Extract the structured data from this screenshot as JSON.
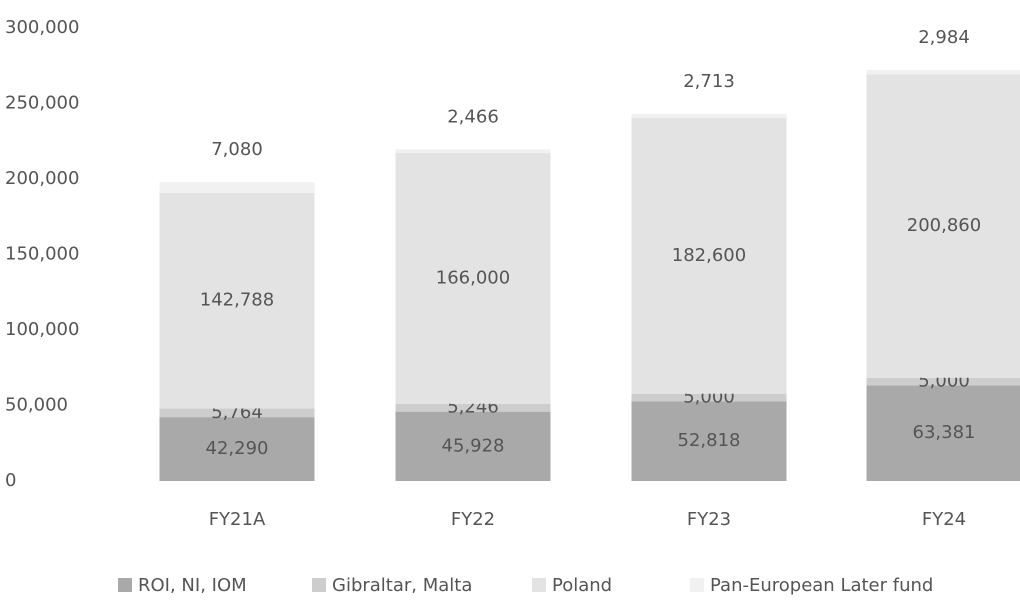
{
  "chart_data": {
    "type": "stacked_bar",
    "categories": [
      "FY21A",
      "FY22",
      "FY23",
      "FY24"
    ],
    "series": [
      {
        "name": "ROI, NI, IOM",
        "color": "#a9a9a9",
        "label_color": "#d6d6d6",
        "values": [
          42290,
          45928,
          52818,
          63381
        ],
        "value_labels": [
          "42,290",
          "45,928",
          "52,818",
          "63,381"
        ]
      },
      {
        "name": "Gibraltar, Malta",
        "color": "#cdcdcd",
        "label_color": "#8a8a8a",
        "values": [
          5764,
          5246,
          5000,
          5000
        ],
        "value_labels": [
          "5,764",
          "5,246",
          "5,000",
          "5,000"
        ]
      },
      {
        "name": "Poland",
        "color": "#e3e3e3",
        "label_color": "#333333",
        "values": [
          142788,
          166000,
          182600,
          200860
        ],
        "value_labels": [
          "142,788",
          "166,000",
          "182,600",
          "200,860"
        ]
      },
      {
        "name": "Pan-European Later fund",
        "color": "#f1f1f1",
        "label_color": "#444444",
        "values": [
          7080,
          2466,
          2713,
          2984
        ],
        "value_labels": [
          "7,080",
          "2,466",
          "2,713",
          "2,984"
        ]
      }
    ],
    "ylim": [
      0,
      300000
    ],
    "yticks": [
      0,
      {
        "value": 50000,
        "label": "50,000"
      },
      {
        "value": 100000,
        "label": "100,000"
      },
      {
        "value": 150000,
        "label": "150,000"
      },
      {
        "value": 200000,
        "label": "200,000"
      },
      {
        "value": 250000,
        "label": "250,000"
      },
      {
        "value": 300000,
        "label": "300,000"
      }
    ]
  }
}
